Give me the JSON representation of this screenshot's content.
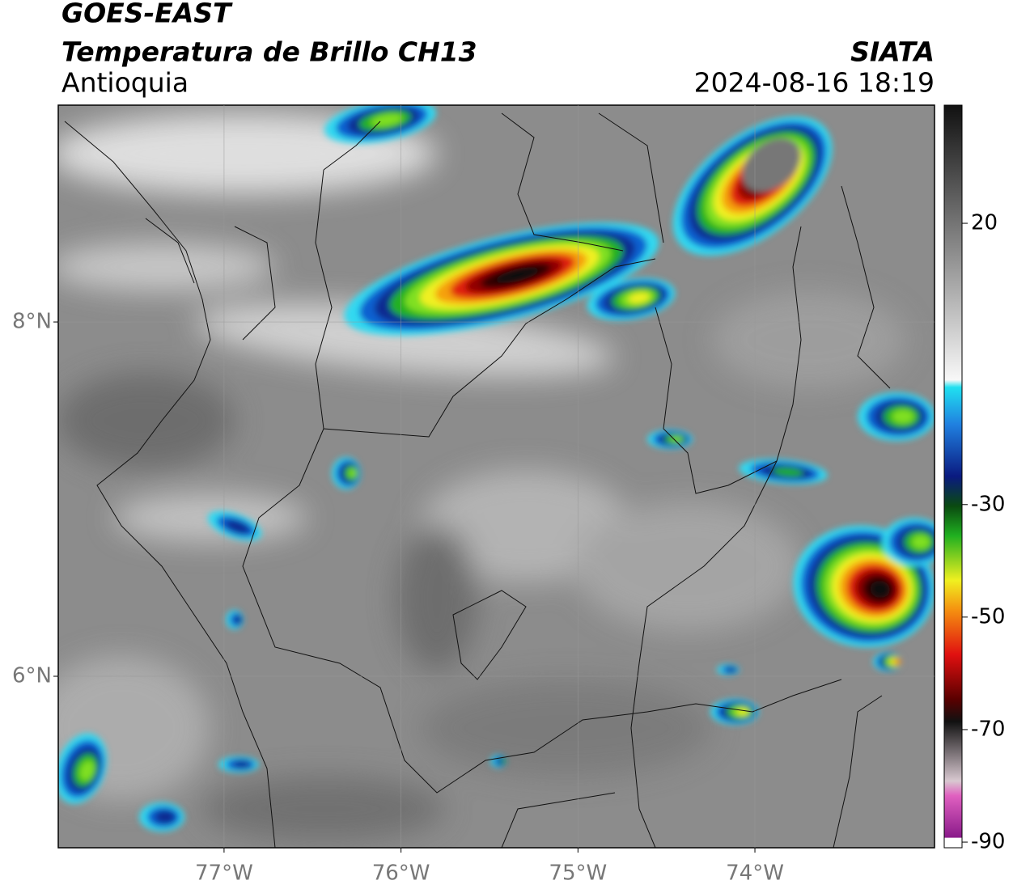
{
  "header": {
    "title": "GOES-EAST",
    "subtitle": "Temperatura de Brillo CH13",
    "region": "Antioquia",
    "source": "SIATA",
    "datetime": "2024-08-16 18:19"
  },
  "map": {
    "xlim": [
      -77.937,
      -72.985
    ],
    "ylim": [
      5.032,
      9.224
    ],
    "xticks": [
      {
        "value": -77,
        "label": "77°W"
      },
      {
        "value": -76,
        "label": "76°W"
      },
      {
        "value": -75,
        "label": "75°W"
      },
      {
        "value": -74,
        "label": "74°W"
      }
    ],
    "yticks": [
      {
        "value": 8,
        "label": "8°N"
      },
      {
        "value": 6,
        "label": "6°N"
      }
    ],
    "grid": true
  },
  "colorbar": {
    "lim": [
      -91,
      41
    ],
    "ticks": [
      20,
      -30,
      -50,
      -70,
      -90
    ]
  }
}
